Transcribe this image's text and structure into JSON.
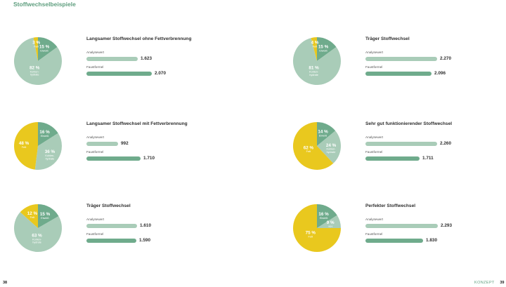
{
  "page": {
    "title": "Stoffwechselbeispiele",
    "page_left": "38",
    "page_right": "39",
    "section": "KONZEPT"
  },
  "bar_labels": {
    "analyse": "Analysewert",
    "faust": "Faustformel"
  },
  "colors": {
    "protein": "#6fab8c",
    "carb": "#a9ccb8",
    "fat": "#e9c81e",
    "bar_analyse": "#a9ccb8",
    "bar_faust": "#6fab8c"
  },
  "chart_data": [
    {
      "type": "pie",
      "title": "Langsamer Stoffwechsel ohne Fettverbrennung",
      "slices": [
        {
          "pct": "15 %",
          "label": "Eiweiß",
          "value": 15,
          "kind": "protein"
        },
        {
          "pct": "82 %",
          "label": "Kohlen-\nhydrate",
          "value": 82,
          "kind": "carb"
        },
        {
          "pct": "3 %",
          "label": "Fett",
          "value": 3,
          "kind": "fat"
        }
      ],
      "analyse": {
        "display": "1.623",
        "value": 1623
      },
      "faust": {
        "display": "2.070",
        "value": 2070
      }
    },
    {
      "type": "pie",
      "title": "Träger Stoffwechsel",
      "slices": [
        {
          "pct": "15 %",
          "label": "Eiweiß",
          "value": 15,
          "kind": "protein"
        },
        {
          "pct": "81 %",
          "label": "Kohlen-\nhydrate",
          "value": 81,
          "kind": "carb"
        },
        {
          "pct": "4 %",
          "label": "Fett",
          "value": 4,
          "kind": "fat"
        }
      ],
      "analyse": {
        "display": "2.270",
        "value": 2270
      },
      "faust": {
        "display": "2.096",
        "value": 2096
      }
    },
    {
      "type": "pie",
      "title": "Langsamer Stoffwechsel mit Fettverbrennung",
      "slices": [
        {
          "pct": "16 %",
          "label": "Eiweiß",
          "value": 16,
          "kind": "protein"
        },
        {
          "pct": "36 %",
          "label": "Kohlen-\nhydrate",
          "value": 36,
          "kind": "carb"
        },
        {
          "pct": "48 %",
          "label": "Fett",
          "value": 48,
          "kind": "fat"
        }
      ],
      "analyse": {
        "display": "992",
        "value": 992
      },
      "faust": {
        "display": "1.710",
        "value": 1710
      }
    },
    {
      "type": "pie",
      "title": "Sehr gut funktionierender Stoffwechsel",
      "slices": [
        {
          "pct": "14 %",
          "label": "Eiweiß",
          "value": 14,
          "kind": "protein"
        },
        {
          "pct": "24 %",
          "label": "Kohlen-\nhydrate",
          "value": 24,
          "kind": "carb"
        },
        {
          "pct": "62 %",
          "label": "Fett",
          "value": 62,
          "kind": "fat"
        }
      ],
      "analyse": {
        "display": "2.260",
        "value": 2260
      },
      "faust": {
        "display": "1.711",
        "value": 1711
      }
    },
    {
      "type": "pie",
      "title": "Träger Stoffwechsel",
      "slices": [
        {
          "pct": "15 %",
          "label": "Eiweiß",
          "value": 15,
          "kind": "protein"
        },
        {
          "pct": "63 %",
          "label": "Kohlen-\nhydrate",
          "value": 63,
          "kind": "carb"
        },
        {
          "pct": "12 %",
          "label": "Fett",
          "value": 12,
          "kind": "fat"
        }
      ],
      "analyse": {
        "display": "1.610",
        "value": 1610
      },
      "faust": {
        "display": "1.590",
        "value": 1590
      }
    },
    {
      "type": "pie",
      "title": "Perfekter Stoffwechsel",
      "slices": [
        {
          "pct": "16 %",
          "label": "Eiweiß",
          "value": 16,
          "kind": "protein"
        },
        {
          "pct": "9 %",
          "label": "KH",
          "value": 9,
          "kind": "carb"
        },
        {
          "pct": "75 %",
          "label": "Fett",
          "value": 75,
          "kind": "fat"
        }
      ],
      "analyse": {
        "display": "2.293",
        "value": 2293
      },
      "faust": {
        "display": "1.830",
        "value": 1830
      }
    }
  ]
}
